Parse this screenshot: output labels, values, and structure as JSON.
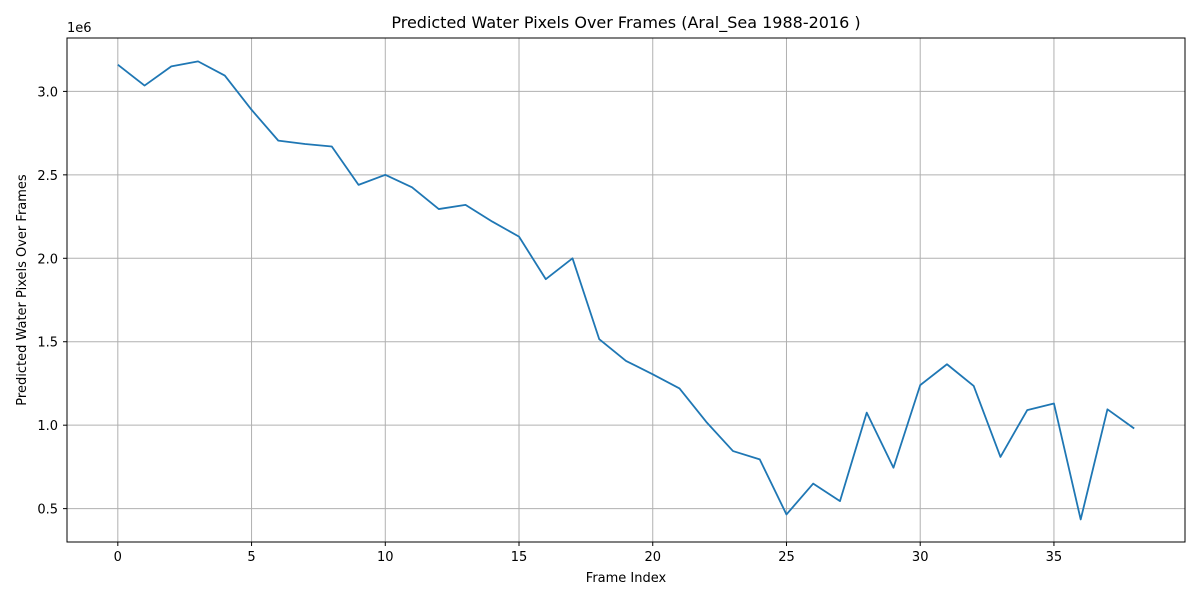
{
  "chart_data": {
    "type": "line",
    "title": "Predicted Water Pixels Over Frames (Aral_Sea 1988-2016 )",
    "xlabel": "Frame Index",
    "ylabel": "Predicted Water Pixels Over Frames",
    "y_scale_label": "1e6",
    "xlim": [
      -1.9,
      39.9
    ],
    "ylim": [
      300000,
      3320000
    ],
    "x_ticks": [
      0,
      5,
      10,
      15,
      20,
      25,
      30,
      35
    ],
    "x_tick_labels": [
      "0",
      "5",
      "10",
      "15",
      "20",
      "25",
      "30",
      "35"
    ],
    "y_ticks": [
      500000,
      1000000,
      1500000,
      2000000,
      2500000,
      3000000
    ],
    "y_tick_labels": [
      "0.5",
      "1.0",
      "1.5",
      "2.0",
      "2.5",
      "3.0"
    ],
    "grid": true,
    "line_color": "#1f77b4",
    "grid_color": "#b0b0b0",
    "series": [
      {
        "x": [
          0,
          1,
          2,
          3,
          4,
          5,
          6,
          7,
          8,
          9,
          10,
          11,
          12,
          13,
          14,
          15,
          16,
          17,
          18,
          19,
          20,
          21,
          22,
          23,
          24,
          25,
          26,
          27,
          28,
          29,
          30,
          31,
          32,
          33,
          34,
          35,
          36,
          37,
          38
        ],
        "values": [
          3160000,
          3035000,
          3150000,
          3180000,
          3095000,
          2890000,
          2705000,
          2685000,
          2670000,
          2440000,
          2500000,
          2425000,
          2295000,
          2320000,
          2220000,
          2130000,
          1875000,
          2000000,
          1515000,
          1385000,
          1305000,
          1220000,
          1020000,
          845000,
          795000,
          465000,
          650000,
          545000,
          1075000,
          745000,
          1240000,
          1365000,
          1235000,
          810000,
          1090000,
          1130000,
          435000,
          1095000,
          980000
        ]
      }
    ]
  }
}
